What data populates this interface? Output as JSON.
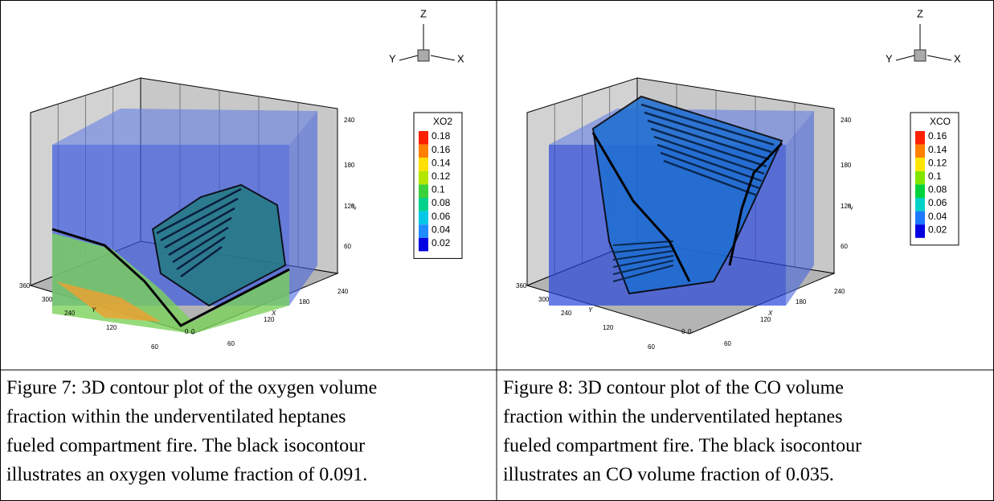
{
  "figures": [
    {
      "triad": {
        "z": "Z",
        "y": "Y",
        "x": "X"
      },
      "axes": {
        "z_label": "Z",
        "y_label": "Y",
        "x_label": "X",
        "z_ticks": [
          240,
          180,
          120,
          60
        ],
        "y_ticks": [
          360,
          300,
          240,
          120,
          60,
          0
        ],
        "x_ticks": [
          0,
          60,
          120,
          180,
          240
        ]
      },
      "legend": {
        "title": "XO2",
        "levels": [
          {
            "value": 0.18,
            "color": "#ff2000"
          },
          {
            "value": 0.16,
            "color": "#ff8000"
          },
          {
            "value": 0.14,
            "color": "#ffe000"
          },
          {
            "value": 0.12,
            "color": "#b4e600"
          },
          {
            "value": 0.1,
            "color": "#3cd23c"
          },
          {
            "value": 0.08,
            "color": "#00d28c"
          },
          {
            "value": 0.06,
            "color": "#00c8e6"
          },
          {
            "value": 0.04,
            "color": "#1e8cff"
          },
          {
            "value": 0.02,
            "color": "#0000e0"
          }
        ]
      },
      "caption": [
        "Figure 7: 3D contour plot of the oxygen volume",
        "fraction within the underventilated heptanes",
        "fueled compartment fire. The black isocontour",
        "illustrates an oxygen volume fraction of 0.091."
      ]
    },
    {
      "triad": {
        "z": "Z",
        "y": "Y",
        "x": "X"
      },
      "axes": {
        "z_label": "Z",
        "y_label": "Y",
        "x_label": "X",
        "z_ticks": [
          240,
          180,
          120,
          60
        ],
        "y_ticks": [
          360,
          300,
          240,
          120,
          60,
          0
        ],
        "x_ticks": [
          0,
          60,
          120,
          180,
          240
        ]
      },
      "legend": {
        "title": "XCO",
        "levels": [
          {
            "value": 0.16,
            "color": "#ff2000"
          },
          {
            "value": 0.14,
            "color": "#ff8000"
          },
          {
            "value": 0.12,
            "color": "#ffe600"
          },
          {
            "value": 0.1,
            "color": "#80e600"
          },
          {
            "value": 0.08,
            "color": "#00d23c"
          },
          {
            "value": 0.06,
            "color": "#00d2c8"
          },
          {
            "value": 0.04,
            "color": "#1e78ff"
          },
          {
            "value": 0.02,
            "color": "#0000e0"
          }
        ]
      },
      "caption": [
        "Figure 8: 3D contour plot of the CO volume",
        "fraction within the underventilated heptanes",
        "fueled compartment fire. The black isocontour",
        "illustrates an CO volume fraction of 0.035."
      ]
    }
  ]
}
